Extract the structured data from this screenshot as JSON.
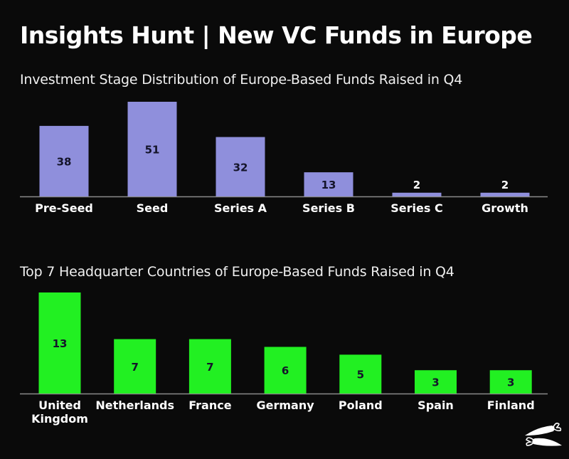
{
  "title": "Insights Hunt | New VC Funds in Europe",
  "chart_data": [
    {
      "type": "bar",
      "title": "Investment Stage Distribution of Europe-Based Funds Raised in Q4",
      "categories": [
        "Pre-Seed",
        "Seed",
        "Series A",
        "Series B",
        "Series C",
        "Growth"
      ],
      "values": [
        38,
        51,
        32,
        13,
        2,
        2
      ],
      "value_labels": [
        "38",
        "51",
        "32",
        "13",
        "2",
        "2"
      ],
      "color": "#8f8fdc",
      "xlabel": "",
      "ylabel": "",
      "ylim": [
        0,
        51
      ],
      "grid": false
    },
    {
      "type": "bar",
      "title": "Top 7 Headquarter Countries of Europe-Based Funds Raised in Q4",
      "categories": [
        "United Kingdom",
        "Netherlands",
        "France",
        "Germany",
        "Poland",
        "Spain",
        "Finland"
      ],
      "category_lines": [
        [
          "United",
          "Kingdom"
        ],
        [
          "Netherlands"
        ],
        [
          "France"
        ],
        [
          "Germany"
        ],
        [
          "Poland"
        ],
        [
          "Spain"
        ],
        [
          "Finland"
        ]
      ],
      "values": [
        13,
        7,
        7,
        6,
        5,
        3,
        3
      ],
      "value_labels": [
        "13",
        "7",
        "7",
        "6",
        "5",
        "3",
        "3"
      ],
      "color": "#22f022",
      "xlabel": "",
      "ylabel": "",
      "ylim": [
        0,
        13
      ],
      "grid": false
    }
  ]
}
